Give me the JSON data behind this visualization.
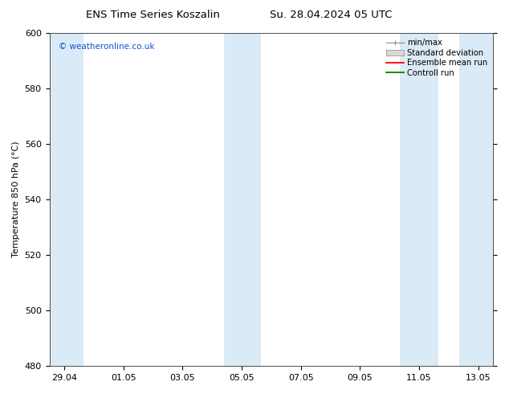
{
  "title_left": "ENS Time Series Koszalin",
  "title_right": "Su. 28.04.2024 05 UTC",
  "ylabel": "Temperature 850 hPa (°C)",
  "ylim": [
    480,
    600
  ],
  "yticks": [
    480,
    500,
    520,
    540,
    560,
    580,
    600
  ],
  "watermark": "© weatheronline.co.uk",
  "watermark_color": "#1155cc",
  "bg_color": "#ffffff",
  "plot_bg_color": "#ffffff",
  "shaded_color": "#daeaf7",
  "legend_entries": [
    "min/max",
    "Standard deviation",
    "Ensemble mean run",
    "Controll run"
  ],
  "legend_colors": [
    "#999999",
    "#cccccc",
    "#ff0000",
    "#008000"
  ],
  "xtick_labels": [
    "29.04",
    "01.05",
    "03.05",
    "05.05",
    "07.05",
    "09.05",
    "11.05",
    "13.05"
  ],
  "shaded_band_centers": [
    "2024-04-29",
    "2024-05-04",
    "2024-05-05",
    "2024-05-11",
    "2024-05-12",
    "2024-05-13"
  ],
  "xmin_date": "2024-04-28",
  "xmax_date": "2024-05-14"
}
